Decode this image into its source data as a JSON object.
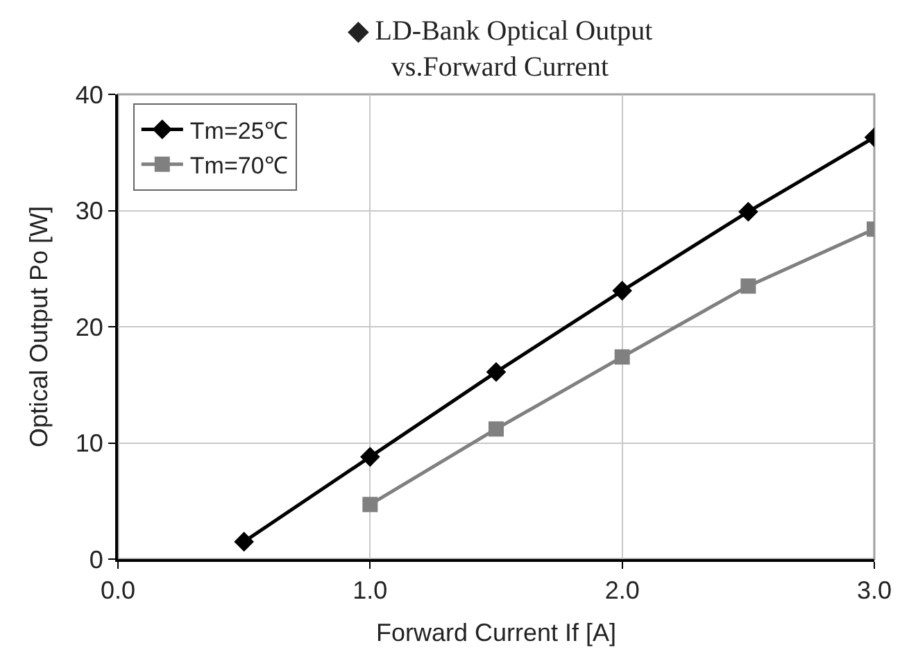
{
  "chart_data": {
    "type": "line",
    "title": "◆ LD-Bank Optical Output\nvs.Forward Current",
    "xlabel": "Forward Current If [A]",
    "ylabel": "Optical Output Po [W]",
    "xlim": [
      0,
      3
    ],
    "xticks": [
      {
        "value": 0,
        "label": "0.0"
      },
      {
        "value": 1,
        "label": "1.0"
      },
      {
        "value": 2,
        "label": "2.0"
      },
      {
        "value": 3,
        "label": "3.0"
      }
    ],
    "ylim": [
      0,
      40
    ],
    "yticks": [
      0,
      10,
      20,
      30,
      40
    ],
    "grid": true,
    "legend": "top left",
    "line_style": "solid",
    "series": [
      {
        "name": "Tm=25℃",
        "color": "#000000",
        "marker": "diamond",
        "x": [
          0.5,
          1.0,
          1.5,
          2.0,
          2.5,
          3.0
        ],
        "values": [
          1.5,
          8.8,
          16.1,
          23.1,
          29.9,
          36.3
        ]
      },
      {
        "name": "Tm=70℃",
        "color": "#808080",
        "marker": "square",
        "x": [
          1.0,
          1.5,
          2.0,
          2.5,
          3.0
        ],
        "values": [
          4.7,
          11.2,
          17.4,
          23.5,
          28.4
        ]
      }
    ]
  }
}
